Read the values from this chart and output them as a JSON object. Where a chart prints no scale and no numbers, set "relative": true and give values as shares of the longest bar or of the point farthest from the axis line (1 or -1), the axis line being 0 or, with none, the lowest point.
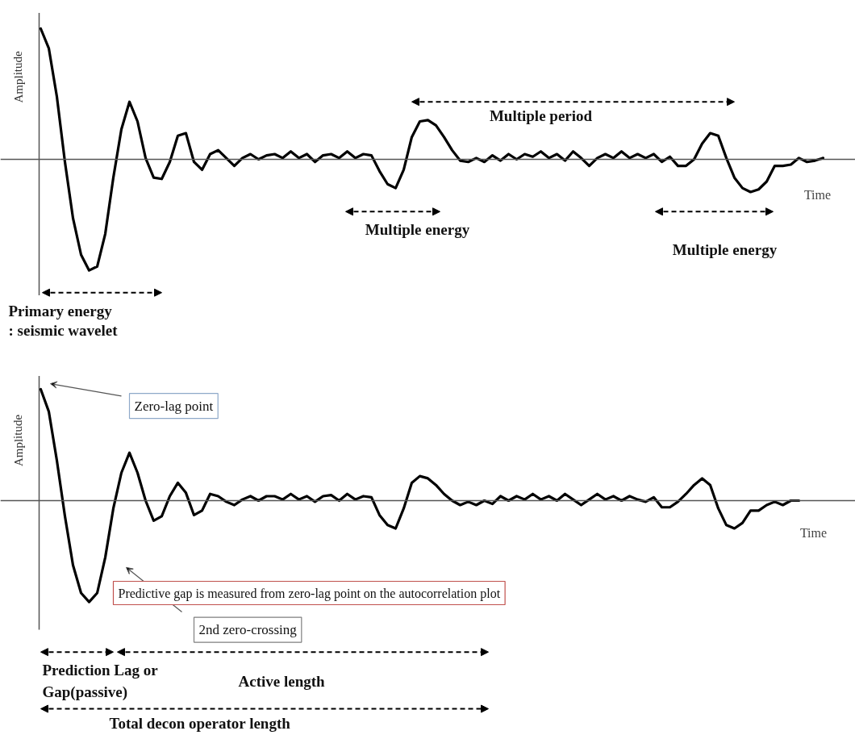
{
  "chart_data": [
    {
      "type": "line",
      "relative": true,
      "tick_labels": false,
      "xlabel": "Time",
      "ylabel": "Amplitude",
      "categories": [
        null,
        null,
        null,
        null,
        null,
        null,
        null,
        null,
        null,
        null,
        null,
        null,
        null,
        null,
        null,
        null,
        null,
        null,
        null,
        null,
        null,
        null,
        null,
        null,
        null,
        null,
        null,
        null,
        null,
        null,
        null,
        null,
        null,
        null,
        null,
        null,
        null,
        null,
        null,
        null,
        null,
        null,
        null,
        null,
        null,
        null,
        null,
        null,
        null,
        null,
        null,
        null,
        null,
        null,
        null,
        null,
        null,
        null,
        null,
        null,
        null,
        null,
        null,
        null,
        null,
        null,
        null,
        null,
        null,
        null,
        null,
        null,
        null,
        null,
        null,
        null,
        null,
        null,
        null,
        null,
        null,
        null,
        null,
        null,
        null,
        null,
        null,
        null,
        null,
        null,
        null,
        null,
        null,
        null,
        null,
        null,
        null,
        null
      ],
      "series": [
        {
          "color": "#000000",
          "values": [
            1.0,
            0.85,
            0.48,
            -0.02,
            -0.45,
            -0.73,
            -0.85,
            -0.82,
            -0.57,
            -0.14,
            0.23,
            0.44,
            0.29,
            0.01,
            -0.14,
            -0.15,
            -0.02,
            0.18,
            0.2,
            -0.02,
            -0.08,
            0.04,
            0.07,
            0.01,
            -0.05,
            0.01,
            0.04,
            0.0,
            0.03,
            0.04,
            0.01,
            0.06,
            0.01,
            0.04,
            -0.02,
            0.03,
            0.04,
            0.01,
            0.06,
            0.01,
            0.04,
            0.03,
            -0.09,
            -0.19,
            -0.22,
            -0.08,
            0.17,
            0.29,
            0.3,
            0.26,
            0.17,
            0.07,
            -0.01,
            -0.02,
            0.01,
            -0.02,
            0.03,
            -0.01,
            0.04,
            0.0,
            0.04,
            0.02,
            0.06,
            0.01,
            0.04,
            -0.01,
            0.06,
            0.01,
            -0.05,
            0.01,
            0.04,
            0.01,
            0.06,
            0.01,
            0.04,
            0.01,
            0.04,
            -0.02,
            0.02,
            -0.05,
            -0.05,
            0.0,
            0.12,
            0.2,
            0.18,
            0.01,
            -0.14,
            -0.22,
            -0.25,
            -0.23,
            -0.17,
            -0.05,
            -0.05,
            -0.04,
            0.01,
            -0.02,
            -0.01,
            0.01
          ]
        }
      ],
      "annotations": [
        "Multiple period",
        "Multiple energy",
        "Multiple energy",
        "Primary energy",
        ": seismic wavelet"
      ]
    },
    {
      "type": "line",
      "relative": true,
      "tick_labels": false,
      "xlabel": "Time",
      "ylabel": "Amplitude",
      "categories": [
        null,
        null,
        null,
        null,
        null,
        null,
        null,
        null,
        null,
        null,
        null,
        null,
        null,
        null,
        null,
        null,
        null,
        null,
        null,
        null,
        null,
        null,
        null,
        null,
        null,
        null,
        null,
        null,
        null,
        null,
        null,
        null,
        null,
        null,
        null,
        null,
        null,
        null,
        null,
        null,
        null,
        null,
        null,
        null,
        null,
        null,
        null,
        null,
        null,
        null,
        null,
        null,
        null,
        null,
        null,
        null,
        null,
        null,
        null,
        null,
        null,
        null,
        null,
        null,
        null,
        null,
        null,
        null,
        null,
        null,
        null,
        null,
        null,
        null,
        null,
        null,
        null,
        null,
        null,
        null,
        null,
        null,
        null,
        null,
        null,
        null,
        null,
        null,
        null,
        null,
        null,
        null,
        null,
        null,
        null,
        null,
        null,
        null
      ],
      "series": [
        {
          "color": "#000000",
          "values": [
            1.0,
            0.8,
            0.36,
            -0.14,
            -0.58,
            -0.83,
            -0.91,
            -0.83,
            -0.51,
            -0.07,
            0.25,
            0.43,
            0.25,
            0.0,
            -0.18,
            -0.14,
            0.04,
            0.16,
            0.07,
            -0.13,
            -0.09,
            0.06,
            0.04,
            -0.01,
            -0.04,
            0.01,
            0.04,
            0.0,
            0.04,
            0.04,
            0.01,
            0.06,
            0.01,
            0.04,
            -0.01,
            0.04,
            0.05,
            0.0,
            0.06,
            0.01,
            0.04,
            0.03,
            -0.13,
            -0.22,
            -0.25,
            -0.07,
            0.16,
            0.22,
            0.2,
            0.14,
            0.06,
            0.0,
            -0.04,
            -0.01,
            -0.04,
            0.0,
            -0.03,
            0.04,
            0.0,
            0.04,
            0.01,
            0.06,
            0.01,
            0.04,
            0.0,
            0.06,
            0.01,
            -0.04,
            0.01,
            0.06,
            0.01,
            0.04,
            0.0,
            0.04,
            0.01,
            -0.01,
            0.03,
            -0.06,
            -0.06,
            -0.01,
            0.06,
            0.14,
            0.2,
            0.14,
            -0.07,
            -0.22,
            -0.25,
            -0.2,
            -0.09,
            -0.09,
            -0.04,
            -0.01,
            -0.04,
            0.0,
            0.0,
            null,
            null,
            null
          ]
        }
      ],
      "annotations": [
        "Zero-lag point",
        "2nd zero-crossing",
        "Predictive gap is measured from zero-lag point on the autocorrelation plot",
        "Prediction Lag or",
        "Gap(passive)",
        "Active length",
        "Total decon operator length"
      ]
    }
  ]
}
